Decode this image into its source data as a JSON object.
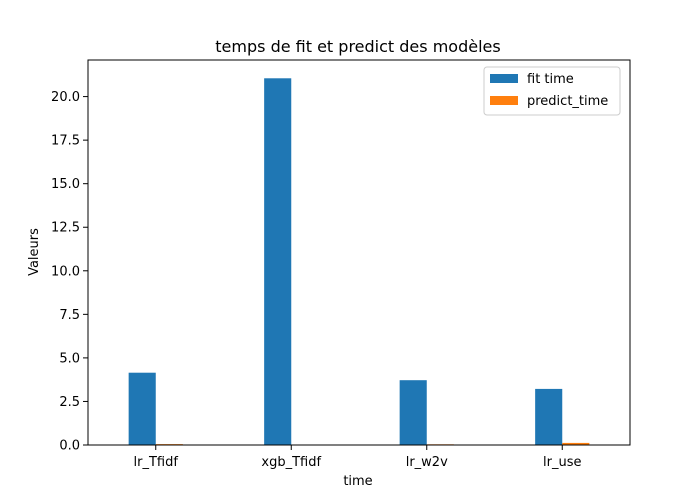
{
  "chart_data": {
    "type": "bar",
    "title": "temps de fit et predict des modèles",
    "xlabel": "time",
    "ylabel": "Valeurs",
    "categories": [
      "lr_Tfidf",
      "xgb_Tfidf",
      "lr_w2v",
      "lr_use"
    ],
    "series": [
      {
        "name": "fit time",
        "color": "#1f77b4",
        "values": [
          4.15,
          21.05,
          3.72,
          3.22
        ]
      },
      {
        "name": "predict_time",
        "color": "#ff7f0e",
        "values": [
          0.05,
          0.01,
          0.04,
          0.12
        ]
      }
    ],
    "ylim": [
      0,
      22.1
    ],
    "yticks": [
      0.0,
      2.5,
      5.0,
      7.5,
      10.0,
      12.5,
      15.0,
      17.5,
      20.0
    ],
    "ytick_labels": [
      "0.0",
      "2.5",
      "5.0",
      "7.5",
      "10.0",
      "12.5",
      "15.0",
      "17.5",
      "20.0"
    ],
    "legend_position": "top-right",
    "grid": false
  }
}
